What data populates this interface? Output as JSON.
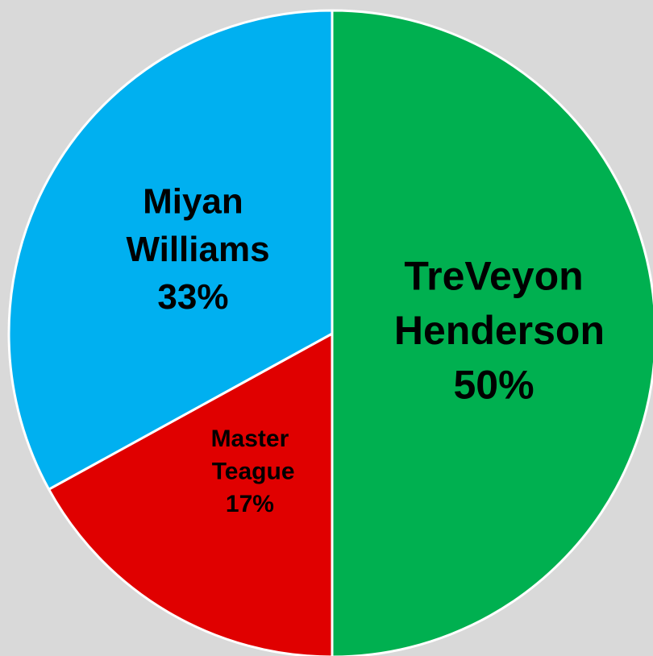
{
  "chart_data": {
    "type": "pie",
    "categories": [
      "TreVeyon Henderson",
      "Master Teague",
      "Miyan Williams"
    ],
    "values": [
      50,
      17,
      33
    ],
    "value_labels": [
      "50%",
      "17%",
      "33%"
    ],
    "colors": [
      "#00b050",
      "#e00000",
      "#00b0f0"
    ]
  }
}
